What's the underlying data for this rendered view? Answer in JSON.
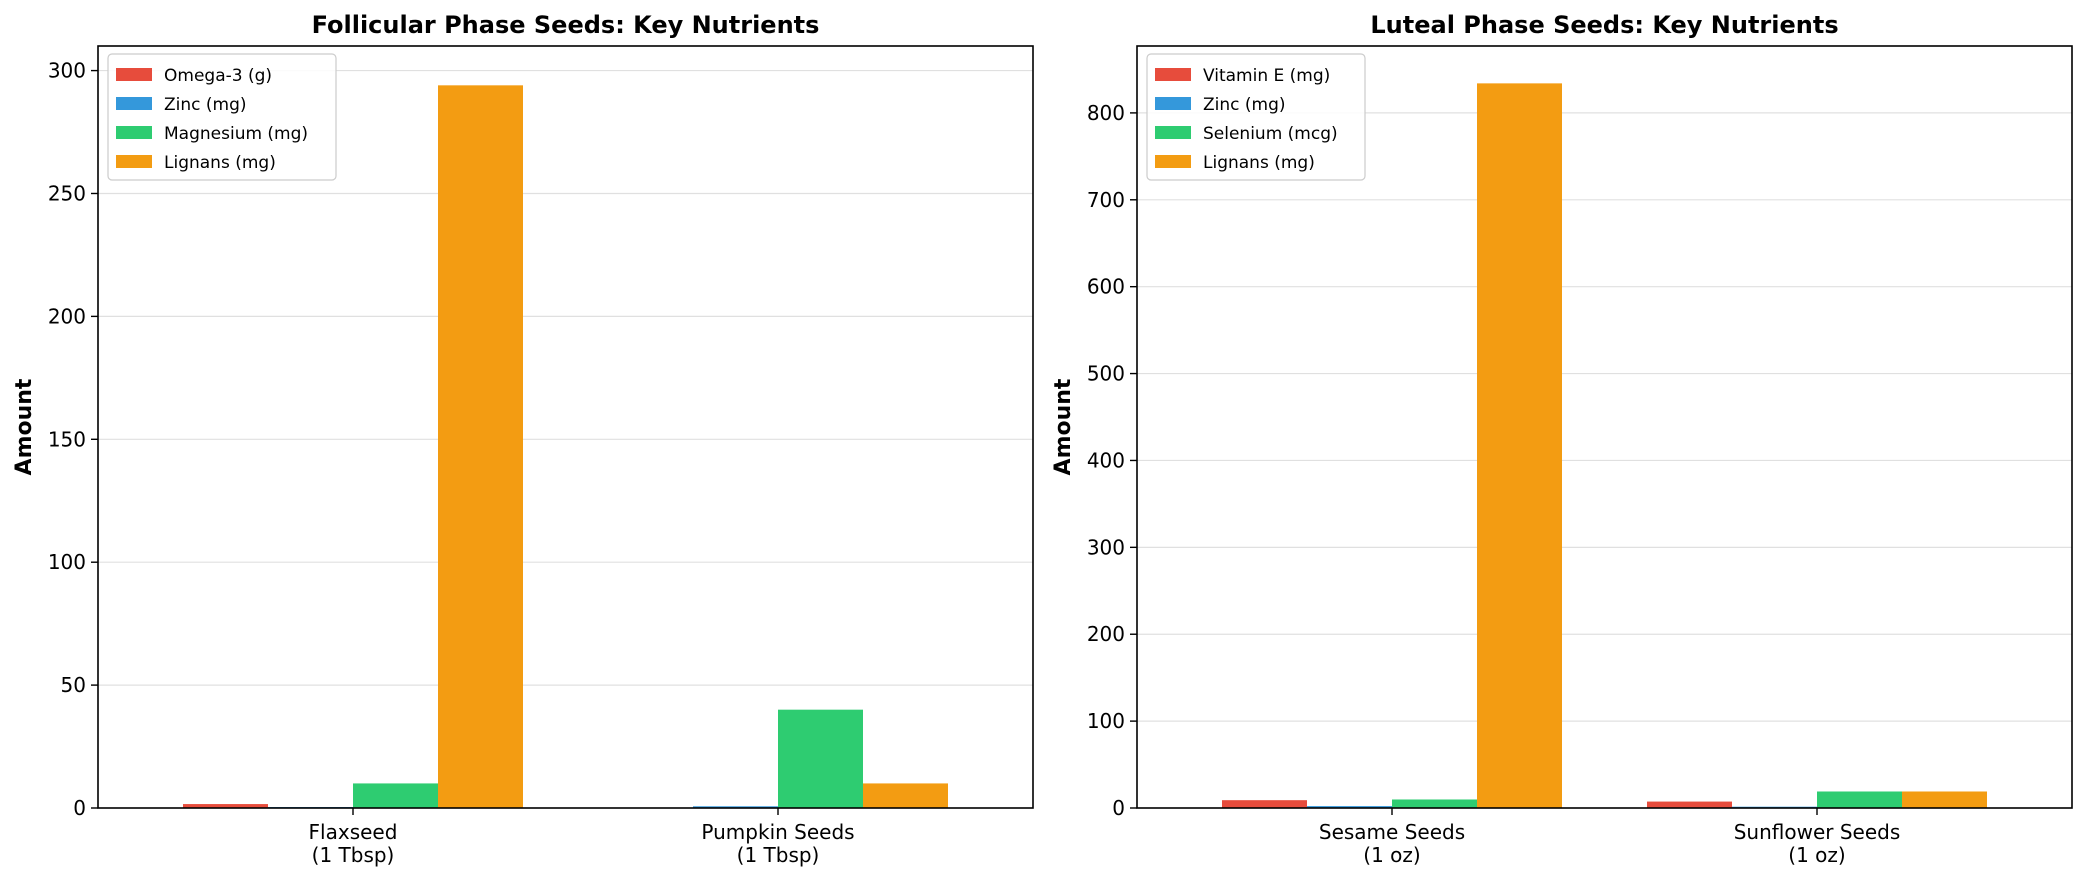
{
  "chart_data": [
    {
      "type": "bar",
      "title": "Follicular Phase Seeds: Key Nutrients",
      "xlabel": "",
      "ylabel": "Amount",
      "categories": [
        [
          "Flaxseed",
          "(1 Tbsp)"
        ],
        [
          "Pumpkin Seeds",
          "(1 Tbsp)"
        ]
      ],
      "ylim": [
        0,
        310
      ],
      "yticks": [
        0,
        50,
        100,
        150,
        200,
        250,
        300
      ],
      "grid": "y",
      "legend_position": "top-left",
      "series": [
        {
          "name": "Omega-3 (g)",
          "color": "#e74c3c",
          "values": [
            1.6,
            0.1
          ]
        },
        {
          "name": "Zinc (mg)",
          "color": "#3498db",
          "values": [
            0.4,
            0.7
          ]
        },
        {
          "name": "Magnesium (mg)",
          "color": "#2ecc71",
          "values": [
            10,
            40
          ]
        },
        {
          "name": "Lignans (mg)",
          "color": "#f39c12",
          "values": [
            294,
            10
          ]
        }
      ]
    },
    {
      "type": "bar",
      "title": "Luteal Phase Seeds: Key Nutrients",
      "xlabel": "",
      "ylabel": "Amount",
      "categories": [
        [
          "Sesame Seeds",
          "(1 oz)"
        ],
        [
          "Sunflower Seeds",
          "(1 oz)"
        ]
      ],
      "ylim": [
        0,
        877
      ],
      "yticks": [
        0,
        100,
        200,
        300,
        400,
        500,
        600,
        700,
        800
      ],
      "grid": "y",
      "legend_position": "top-left",
      "series": [
        {
          "name": "Vitamin E (mg)",
          "color": "#e74c3c",
          "values": [
            9,
            7.4
          ]
        },
        {
          "name": "Zinc (mg)",
          "color": "#3498db",
          "values": [
            2.2,
            1.5
          ]
        },
        {
          "name": "Selenium (mcg)",
          "color": "#2ecc71",
          "values": [
            9.8,
            19
          ]
        },
        {
          "name": "Lignans (mg)",
          "color": "#f39c12",
          "values": [
            834,
            19
          ]
        }
      ]
    }
  ]
}
